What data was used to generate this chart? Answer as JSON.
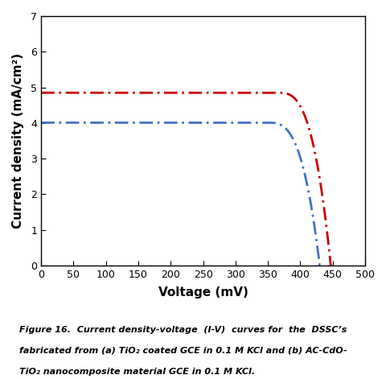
{
  "title": "",
  "xlabel": "Voltage (mV)",
  "ylabel": "Current density (mA/cm²)",
  "xlim": [
    0,
    500
  ],
  "ylim": [
    0,
    7
  ],
  "xticks": [
    0,
    50,
    100,
    150,
    200,
    250,
    300,
    350,
    400,
    450,
    500
  ],
  "yticks": [
    0,
    1,
    2,
    3,
    4,
    5,
    6,
    7
  ],
  "blue_isc": 4.01,
  "blue_voc": 430,
  "blue_knee": 350,
  "red_isc": 4.85,
  "red_voc": 447,
  "red_knee": 365,
  "blue_color": "#4472c4",
  "red_color": "#cc0000",
  "background_color": "#ffffff",
  "line_width": 2.0,
  "caption_line1": "Figure 16.  Current density-voltage  (I-V)  curves for  the  DSSC’s",
  "caption_line2": "fabricated from (a) TiO₂ coated GCE in 0.1 M KCl and (b) AC-CdO-",
  "caption_line3": "TiO₂ nanocomposite material GCE in 0.1 M KCl."
}
